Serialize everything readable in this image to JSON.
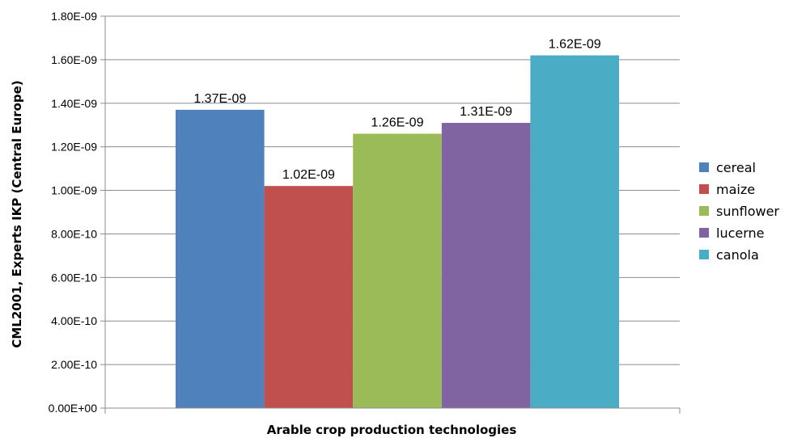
{
  "chart_data": {
    "type": "bar",
    "categories": [
      ""
    ],
    "series": [
      {
        "name": "cereal",
        "values": [
          1.37e-09
        ],
        "color": "#4F81BD",
        "label": "1.37E-09"
      },
      {
        "name": "maize",
        "values": [
          1.02e-09
        ],
        "color": "#C0504D",
        "label": "1.02E-09"
      },
      {
        "name": "sunflower",
        "values": [
          1.26e-09
        ],
        "color": "#9BBB59",
        "label": "1.26E-09"
      },
      {
        "name": "lucerne",
        "values": [
          1.31e-09
        ],
        "color": "#8064A2",
        "label": "1.31E-09"
      },
      {
        "name": "canola",
        "values": [
          1.62e-09
        ],
        "color": "#4BACC6",
        "label": "1.62E-09"
      }
    ],
    "xlabel": "Arable crop production technologies",
    "ylabel": "CML2001, Experts IKP (Central Europe)",
    "ylim": [
      0,
      1.8e-09
    ],
    "yticks": [
      {
        "value": 0,
        "label": "0.00E+00"
      },
      {
        "value": 2e-10,
        "label": "2.00E-10"
      },
      {
        "value": 4e-10,
        "label": "4.00E-10"
      },
      {
        "value": 6e-10,
        "label": "6.00E-10"
      },
      {
        "value": 8e-10,
        "label": "8.00E-10"
      },
      {
        "value": 1e-09,
        "label": "1.00E-09"
      },
      {
        "value": 1.2e-09,
        "label": "1.20E-09"
      },
      {
        "value": 1.4e-09,
        "label": "1.40E-09"
      },
      {
        "value": 1.6e-09,
        "label": "1.60E-09"
      },
      {
        "value": 1.8e-09,
        "label": "1.80E-09"
      }
    ],
    "grid": true,
    "legend": "right"
  }
}
